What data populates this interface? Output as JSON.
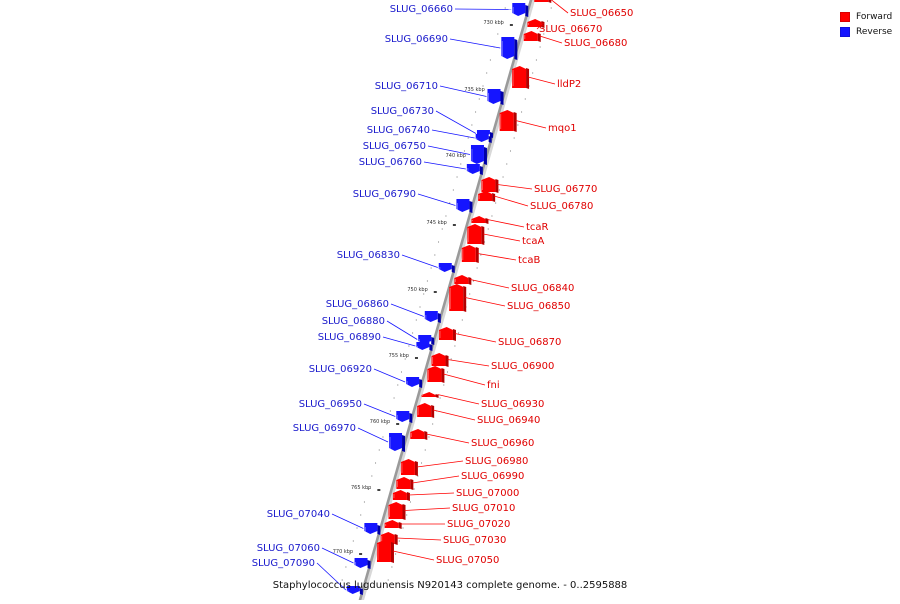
{
  "legend": {
    "items": [
      {
        "label": "Forward",
        "color": "#ff0000"
      },
      {
        "label": "Reverse",
        "color": "#1515ff"
      }
    ]
  },
  "colors": {
    "forward": "#ff0000",
    "forward_dark": "#b30000",
    "reverse": "#1515ff",
    "reverse_dark": "#0000a8",
    "backbone": "#9a9a9a"
  },
  "caption": "Staphylococcus lugdunensis N920143 complete genome. - 0..2595888",
  "ticks": [
    "730 kbp",
    "735 kbp",
    "740 kbp",
    "745 kbp",
    "750 kbp",
    "755 kbp",
    "760 kbp",
    "765 kbp",
    "770 kbp"
  ],
  "forward_genes": [
    "SLUG_06650",
    "SLUG_06670",
    "SLUG_06680",
    "lldP2",
    "mqo1",
    "SLUG_06770",
    "SLUG_06780",
    "tcaR",
    "tcaA",
    "tcaB",
    "SLUG_06840",
    "SLUG_06850",
    "SLUG_06870",
    "SLUG_06900",
    "fni",
    "SLUG_06930",
    "SLUG_06940",
    "SLUG_06960",
    "SLUG_06980",
    "SLUG_06990",
    "SLUG_07000",
    "SLUG_07010",
    "SLUG_07020",
    "SLUG_07030",
    "SLUG_07050"
  ],
  "reverse_genes": [
    "SLUG_06660",
    "SLUG_06690",
    "SLUG_06710",
    "SLUG_06730",
    "SLUG_06740",
    "SLUG_06750",
    "SLUG_06760",
    "SLUG_06790",
    "SLUG_06830",
    "SLUG_06860",
    "SLUG_06880",
    "SLUG_06890",
    "SLUG_06920",
    "SLUG_06950",
    "SLUG_06970",
    "SLUG_07040",
    "SLUG_07060",
    "SLUG_07090"
  ]
}
